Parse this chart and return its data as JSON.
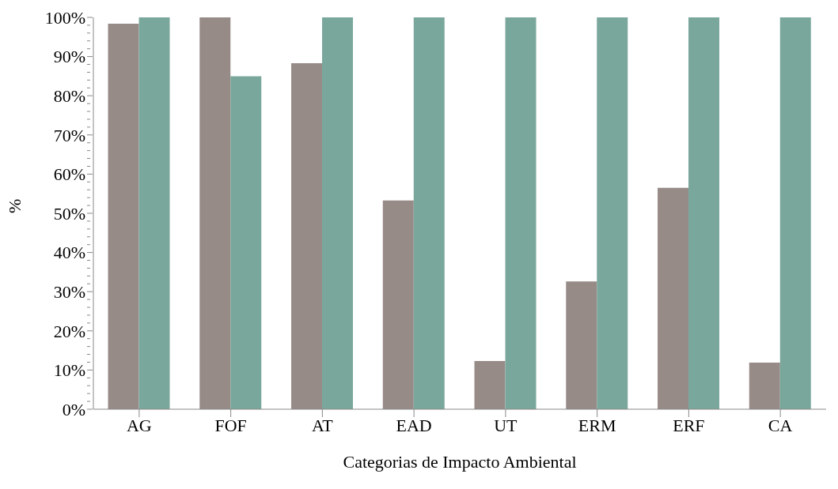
{
  "chart_data": {
    "type": "bar",
    "xlabel": "Categorias de Impacto Ambiental",
    "ylabel": "%",
    "categories": [
      "AG",
      "FOF",
      "AT",
      "EAD",
      "UT",
      "ERM",
      "ERF",
      "CA"
    ],
    "series": [
      {
        "color": "#978b88",
        "values": [
          98.4,
          100,
          88.3,
          53.3,
          12.3,
          32.6,
          56.5,
          11.9
        ]
      },
      {
        "color": "#7aa79c",
        "values": [
          100,
          85,
          100,
          100,
          100,
          100,
          100,
          100
        ]
      }
    ],
    "ylim": [
      0,
      100
    ],
    "yticks": [
      {
        "value": 0,
        "label": "0%"
      },
      {
        "value": 2,
        "label": null
      },
      {
        "value": 4,
        "label": null
      },
      {
        "value": 6,
        "label": null
      },
      {
        "value": 8,
        "label": null
      },
      {
        "value": 10,
        "label": "10%"
      },
      {
        "value": 12,
        "label": null
      },
      {
        "value": 14,
        "label": null
      },
      {
        "value": 16,
        "label": null
      },
      {
        "value": 18,
        "label": null
      },
      {
        "value": 20,
        "label": "20%"
      },
      {
        "value": 22,
        "label": null
      },
      {
        "value": 24,
        "label": null
      },
      {
        "value": 26,
        "label": null
      },
      {
        "value": 28,
        "label": null
      },
      {
        "value": 30,
        "label": "30%"
      },
      {
        "value": 32,
        "label": null
      },
      {
        "value": 34,
        "label": null
      },
      {
        "value": 36,
        "label": null
      },
      {
        "value": 38,
        "label": null
      },
      {
        "value": 40,
        "label": "40%"
      },
      {
        "value": 42,
        "label": null
      },
      {
        "value": 44,
        "label": null
      },
      {
        "value": 46,
        "label": null
      },
      {
        "value": 48,
        "label": null
      },
      {
        "value": 50,
        "label": "50%"
      },
      {
        "value": 52,
        "label": null
      },
      {
        "value": 54,
        "label": null
      },
      {
        "value": 56,
        "label": null
      },
      {
        "value": 58,
        "label": null
      },
      {
        "value": 60,
        "label": "60%"
      },
      {
        "value": 62,
        "label": null
      },
      {
        "value": 64,
        "label": null
      },
      {
        "value": 66,
        "label": null
      },
      {
        "value": 68,
        "label": null
      },
      {
        "value": 70,
        "label": "70%"
      },
      {
        "value": 72,
        "label": null
      },
      {
        "value": 74,
        "label": null
      },
      {
        "value": 76,
        "label": null
      },
      {
        "value": 78,
        "label": null
      },
      {
        "value": 80,
        "label": "80%"
      },
      {
        "value": 82,
        "label": null
      },
      {
        "value": 84,
        "label": null
      },
      {
        "value": 86,
        "label": null
      },
      {
        "value": 88,
        "label": null
      },
      {
        "value": 90,
        "label": "90%"
      },
      {
        "value": 92,
        "label": null
      },
      {
        "value": 94,
        "label": null
      },
      {
        "value": 96,
        "label": null
      },
      {
        "value": 98,
        "label": null
      },
      {
        "value": 100,
        "label": "100%"
      }
    ],
    "grid": false,
    "legend": false
  }
}
